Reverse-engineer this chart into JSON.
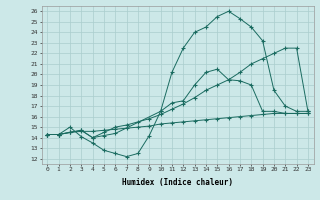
{
  "xlabel": "Humidex (Indice chaleur)",
  "xlim": [
    -0.5,
    23.5
  ],
  "ylim": [
    11.5,
    26.5
  ],
  "xticks": [
    0,
    1,
    2,
    3,
    4,
    5,
    6,
    7,
    8,
    9,
    10,
    11,
    12,
    13,
    14,
    15,
    16,
    17,
    18,
    19,
    20,
    21,
    22,
    23
  ],
  "yticks": [
    12,
    13,
    14,
    15,
    16,
    17,
    18,
    19,
    20,
    21,
    22,
    23,
    24,
    25,
    26
  ],
  "background_color": "#cce8e8",
  "line_color": "#1a6b60",
  "grid_color": "#aacece",
  "line1_x": [
    0,
    1,
    2,
    3,
    4,
    5,
    6,
    7,
    8,
    9,
    10,
    11,
    12,
    13,
    14,
    15,
    16,
    17,
    18,
    19,
    20,
    21,
    22,
    23
  ],
  "line1_y": [
    14.3,
    14.3,
    15.0,
    14.1,
    13.5,
    12.8,
    12.5,
    12.2,
    12.5,
    14.2,
    16.5,
    17.3,
    17.5,
    19.0,
    20.2,
    20.5,
    19.5,
    19.4,
    19.0,
    16.5,
    16.5,
    16.3,
    16.3,
    16.3
  ],
  "line2_x": [
    0,
    1,
    2,
    3,
    4,
    5,
    6,
    7,
    8,
    9,
    10,
    11,
    12,
    13,
    14,
    15,
    16,
    17,
    18,
    19,
    20,
    21,
    22,
    23
  ],
  "line2_y": [
    14.3,
    14.3,
    14.5,
    14.7,
    14.0,
    14.5,
    15.0,
    15.2,
    15.5,
    15.8,
    16.2,
    16.7,
    17.2,
    17.8,
    18.5,
    19.0,
    19.5,
    20.2,
    21.0,
    21.5,
    22.0,
    22.5,
    22.5,
    16.5
  ],
  "line3_x": [
    0,
    1,
    2,
    3,
    4,
    5,
    6,
    10,
    11,
    12,
    13,
    14,
    15,
    16,
    17,
    18,
    19,
    20,
    21,
    22,
    23
  ],
  "line3_y": [
    14.3,
    14.3,
    14.5,
    14.7,
    14.0,
    14.2,
    14.4,
    16.5,
    20.2,
    22.5,
    24.0,
    24.5,
    25.5,
    26.0,
    25.3,
    24.5,
    23.2,
    18.5,
    17.0,
    16.5,
    16.5
  ],
  "line4_x": [
    0,
    1,
    2,
    3,
    4,
    5,
    6,
    7,
    8,
    9,
    10,
    11,
    12,
    13,
    14,
    15,
    16,
    17,
    18,
    19,
    20,
    21,
    22,
    23
  ],
  "line4_y": [
    14.3,
    14.3,
    14.5,
    14.6,
    14.6,
    14.7,
    14.8,
    14.9,
    15.0,
    15.1,
    15.3,
    15.4,
    15.5,
    15.6,
    15.7,
    15.8,
    15.9,
    16.0,
    16.1,
    16.2,
    16.3,
    16.3,
    16.3,
    16.3
  ]
}
